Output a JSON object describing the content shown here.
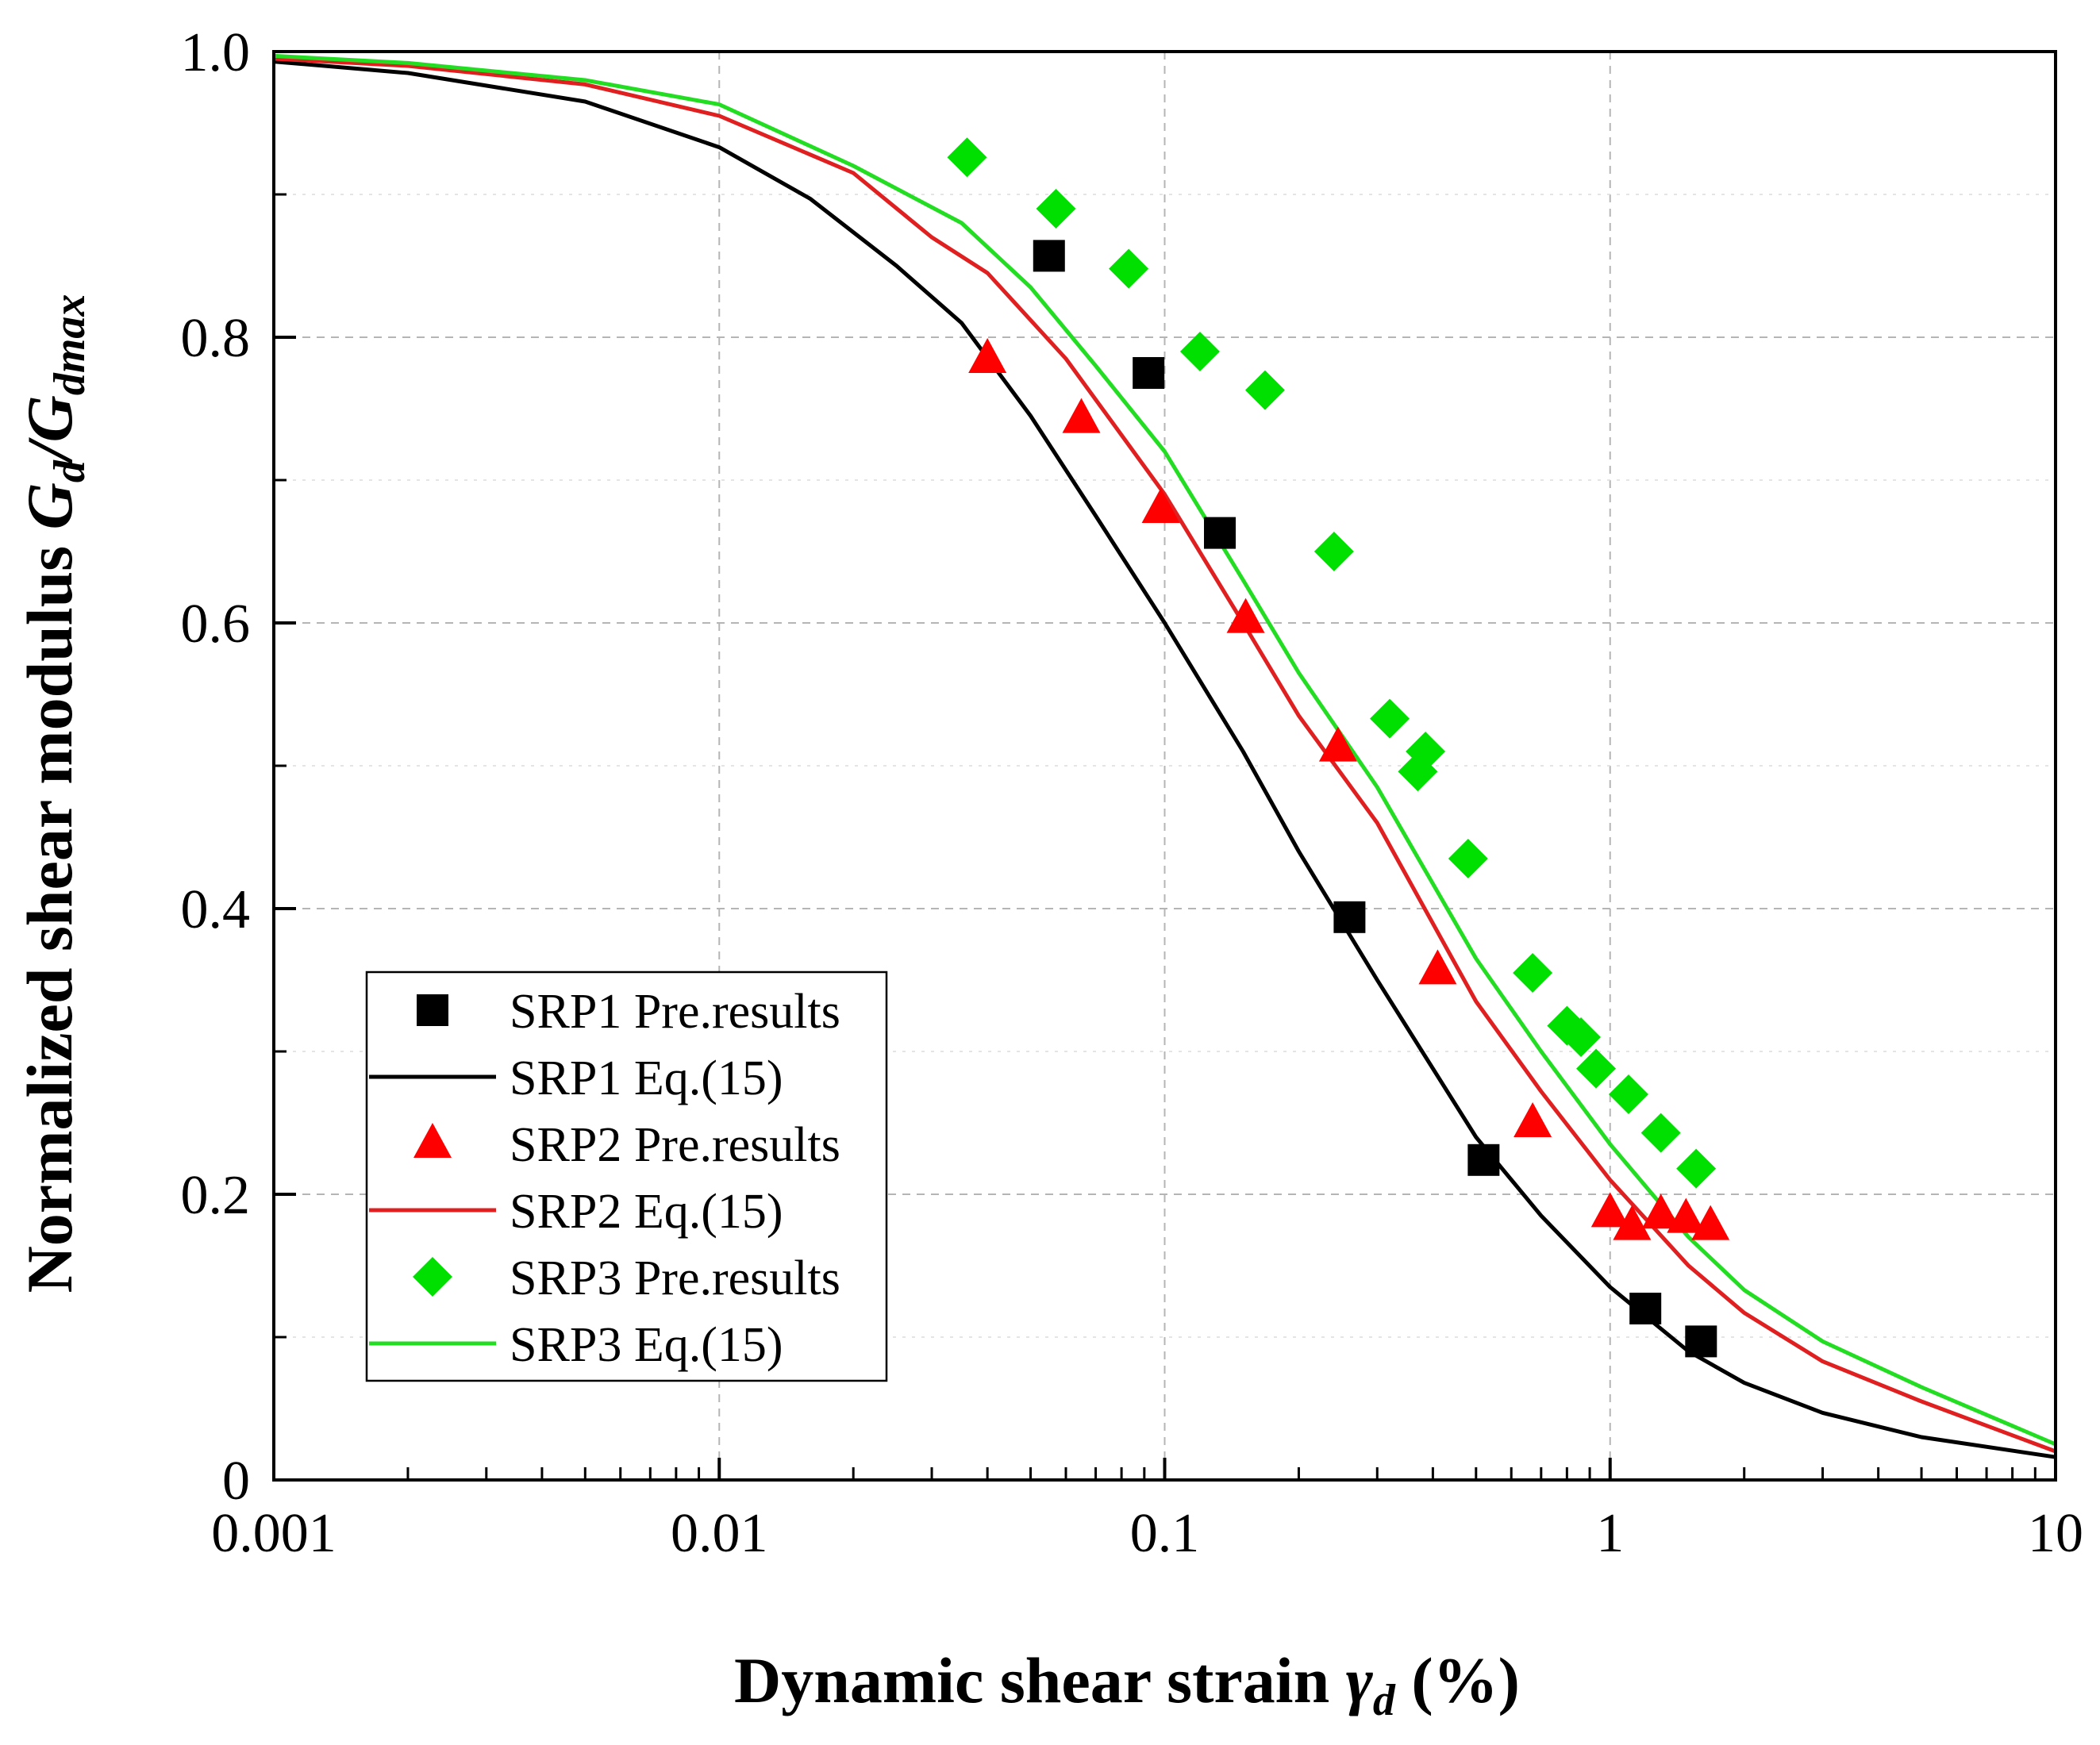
{
  "chart_data": {
    "type": "scatter",
    "x_scale": "log",
    "xlim": [
      0.001,
      10
    ],
    "ylim": [
      0,
      1.0
    ],
    "xlabel": "Dynamic shear strain",
    "xlabel_symbol": "γ",
    "xlabel_sub": "d",
    "xlabel_unit": "(%)",
    "ylabel": "Normalized shear modulus",
    "ylabel_num": "G",
    "ylabel_num_sub": "d",
    "ylabel_den": "/G",
    "ylabel_den_sub": "dmax",
    "x_ticks": [
      {
        "value": 0.001,
        "label": "0.001"
      },
      {
        "value": 0.01,
        "label": "0.01"
      },
      {
        "value": 0.1,
        "label": "0.1"
      },
      {
        "value": 1,
        "label": "1"
      },
      {
        "value": 10,
        "label": "10"
      }
    ],
    "y_ticks": [
      {
        "value": 0,
        "label": "0"
      },
      {
        "value": 0.2,
        "label": "0.2"
      },
      {
        "value": 0.4,
        "label": "0.4"
      },
      {
        "value": 0.6,
        "label": "0.6"
      },
      {
        "value": 0.8,
        "label": "0.8"
      },
      {
        "value": 1.0,
        "label": "1.0"
      }
    ],
    "grid": true,
    "legend_position": "bottom-left",
    "series": [
      {
        "name": "SRP1 Pre.results",
        "kind": "markers",
        "marker": "square",
        "color": "#000000",
        "points": [
          [
            0.055,
            0.857
          ],
          [
            0.092,
            0.775
          ],
          [
            0.133,
            0.663
          ],
          [
            0.26,
            0.394
          ],
          [
            0.52,
            0.224
          ],
          [
            1.2,
            0.12
          ],
          [
            1.6,
            0.097
          ]
        ]
      },
      {
        "name": "SRP1 Eq.(15)",
        "kind": "line",
        "color": "#000000",
        "points": [
          [
            0.001,
            0.993
          ],
          [
            0.002,
            0.985
          ],
          [
            0.005,
            0.965
          ],
          [
            0.01,
            0.933
          ],
          [
            0.016,
            0.897
          ],
          [
            0.025,
            0.85
          ],
          [
            0.035,
            0.81
          ],
          [
            0.05,
            0.745
          ],
          [
            0.07,
            0.675
          ],
          [
            0.1,
            0.6
          ],
          [
            0.15,
            0.51
          ],
          [
            0.2,
            0.44
          ],
          [
            0.3,
            0.35
          ],
          [
            0.5,
            0.24
          ],
          [
            0.7,
            0.185
          ],
          [
            1.0,
            0.135
          ],
          [
            1.5,
            0.09
          ],
          [
            2.0,
            0.068
          ],
          [
            3.0,
            0.047
          ],
          [
            5.0,
            0.03
          ],
          [
            10,
            0.016
          ]
        ]
      },
      {
        "name": "SRP2 Pre.results",
        "kind": "markers",
        "marker": "triangle",
        "color": "#ff0000",
        "points": [
          [
            0.04,
            0.785
          ],
          [
            0.065,
            0.743
          ],
          [
            0.098,
            0.68
          ],
          [
            0.152,
            0.603
          ],
          [
            0.245,
            0.513
          ],
          [
            0.41,
            0.357
          ],
          [
            0.67,
            0.25
          ],
          [
            1.0,
            0.187
          ],
          [
            1.12,
            0.178
          ],
          [
            1.3,
            0.186
          ],
          [
            1.48,
            0.183
          ],
          [
            1.68,
            0.178
          ]
        ]
      },
      {
        "name": "SRP2 Eq.(15)",
        "kind": "line",
        "color": "#e02020",
        "points": [
          [
            0.001,
            0.995
          ],
          [
            0.002,
            0.99
          ],
          [
            0.005,
            0.977
          ],
          [
            0.01,
            0.955
          ],
          [
            0.02,
            0.915
          ],
          [
            0.03,
            0.87
          ],
          [
            0.04,
            0.845
          ],
          [
            0.06,
            0.785
          ],
          [
            0.1,
            0.69
          ],
          [
            0.15,
            0.6
          ],
          [
            0.2,
            0.535
          ],
          [
            0.3,
            0.46
          ],
          [
            0.5,
            0.335
          ],
          [
            0.7,
            0.272
          ],
          [
            1.0,
            0.21
          ],
          [
            1.5,
            0.15
          ],
          [
            2.0,
            0.117
          ],
          [
            3.0,
            0.083
          ],
          [
            5.0,
            0.055
          ],
          [
            10,
            0.02
          ]
        ]
      },
      {
        "name": "SRP3 Pre.results",
        "kind": "markers",
        "marker": "diamond",
        "color": "#00e000",
        "points": [
          [
            0.036,
            0.926
          ],
          [
            0.057,
            0.89
          ],
          [
            0.083,
            0.848
          ],
          [
            0.12,
            0.79
          ],
          [
            0.168,
            0.763
          ],
          [
            0.24,
            0.65
          ],
          [
            0.32,
            0.533
          ],
          [
            0.385,
            0.51
          ],
          [
            0.37,
            0.496
          ],
          [
            0.48,
            0.435
          ],
          [
            0.67,
            0.355
          ],
          [
            0.8,
            0.318
          ],
          [
            0.86,
            0.31
          ],
          [
            0.93,
            0.288
          ],
          [
            1.1,
            0.27
          ],
          [
            1.3,
            0.243
          ],
          [
            1.56,
            0.218
          ]
        ]
      },
      {
        "name": "SRP3 Eq.(15)",
        "kind": "line",
        "color": "#22dd22",
        "points": [
          [
            0.001,
            0.997
          ],
          [
            0.002,
            0.992
          ],
          [
            0.005,
            0.98
          ],
          [
            0.01,
            0.963
          ],
          [
            0.02,
            0.92
          ],
          [
            0.035,
            0.88
          ],
          [
            0.05,
            0.835
          ],
          [
            0.07,
            0.78
          ],
          [
            0.1,
            0.72
          ],
          [
            0.15,
            0.63
          ],
          [
            0.2,
            0.565
          ],
          [
            0.3,
            0.485
          ],
          [
            0.5,
            0.365
          ],
          [
            0.7,
            0.3
          ],
          [
            1.0,
            0.235
          ],
          [
            1.5,
            0.17
          ],
          [
            2.0,
            0.133
          ],
          [
            3.0,
            0.097
          ],
          [
            5.0,
            0.065
          ],
          [
            10,
            0.025
          ]
        ]
      }
    ]
  }
}
